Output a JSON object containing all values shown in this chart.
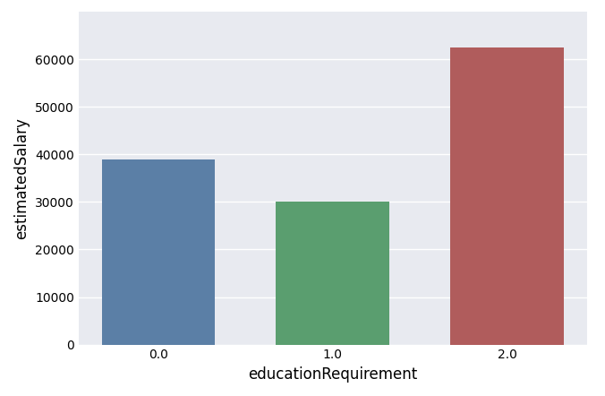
{
  "categories": [
    "0.0",
    "1.0",
    "2.0"
  ],
  "values": [
    39000,
    30000,
    62500
  ],
  "bar_colors": [
    "#5b7fa6",
    "#5a9e6f",
    "#b05c5c"
  ],
  "xlabel": "educationRequirement",
  "ylabel": "estimatedSalary",
  "ylim": [
    0,
    70000
  ],
  "yticks": [
    0,
    10000,
    20000,
    30000,
    40000,
    50000,
    60000
  ],
  "plot_background_color": "#e8eaf0",
  "figure_color": "#ffffff",
  "grid_color": "#ffffff",
  "bar_width": 0.65,
  "xlabel_fontsize": 12,
  "ylabel_fontsize": 12,
  "tick_fontsize": 10
}
